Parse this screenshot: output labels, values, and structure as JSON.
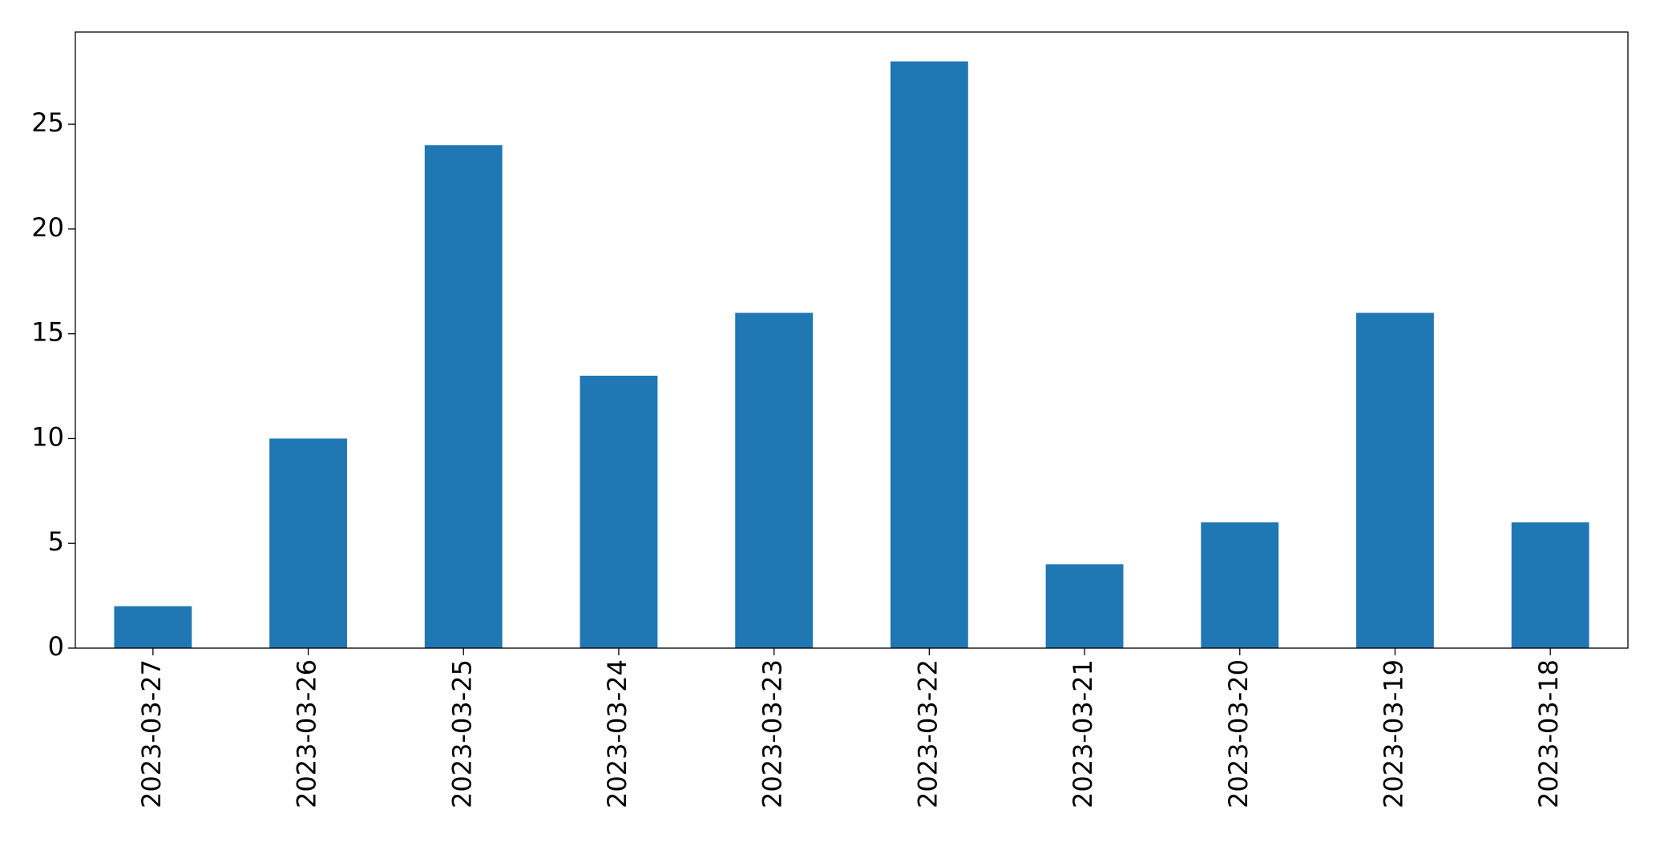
{
  "chart_data": {
    "type": "bar",
    "categories": [
      "2023-03-27",
      "2023-03-26",
      "2023-03-25",
      "2023-03-24",
      "2023-03-23",
      "2023-03-22",
      "2023-03-21",
      "2023-03-20",
      "2023-03-19",
      "2023-03-18"
    ],
    "values": [
      2,
      10,
      24,
      13,
      16,
      28,
      4,
      6,
      16,
      6
    ],
    "color": "#1f77b4",
    "ylim": [
      0,
      29.4
    ],
    "yticks": [
      0,
      5,
      10,
      15,
      20,
      25
    ],
    "grid": false
  }
}
